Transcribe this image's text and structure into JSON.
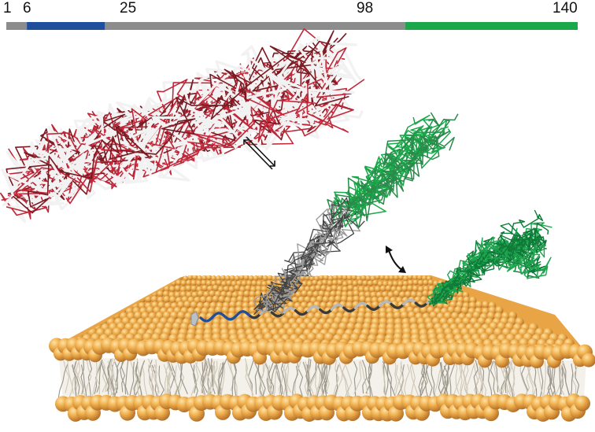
{
  "sequence_bar": {
    "total": 140,
    "ticks": [
      "1",
      "6",
      "25",
      "98",
      "140"
    ],
    "tick_values": [
      1,
      6,
      25,
      98,
      140
    ],
    "segments": [
      {
        "from": 1,
        "to": 6,
        "color": "#8c8c8c"
      },
      {
        "from": 6,
        "to": 25,
        "color": "#1f4e9c"
      },
      {
        "from": 25,
        "to": 98,
        "color": "#8c8c8c"
      },
      {
        "from": 98,
        "to": 140,
        "color": "#1aa84a"
      }
    ]
  },
  "colors": {
    "lipid_head": "#e8a23a",
    "lipid_tail": "#d9d2c2",
    "disordered_protein": "#b02030",
    "helix_blue": "#1f4e9c",
    "helix_gray": "#8a8a8a",
    "c_terminal_green": "#1a9a4a",
    "arrow": "#111111"
  },
  "icons": {
    "equilibrium_arrow": "equilibrium-arrow-icon",
    "double_arrow": "double-headed-arrow-icon"
  }
}
